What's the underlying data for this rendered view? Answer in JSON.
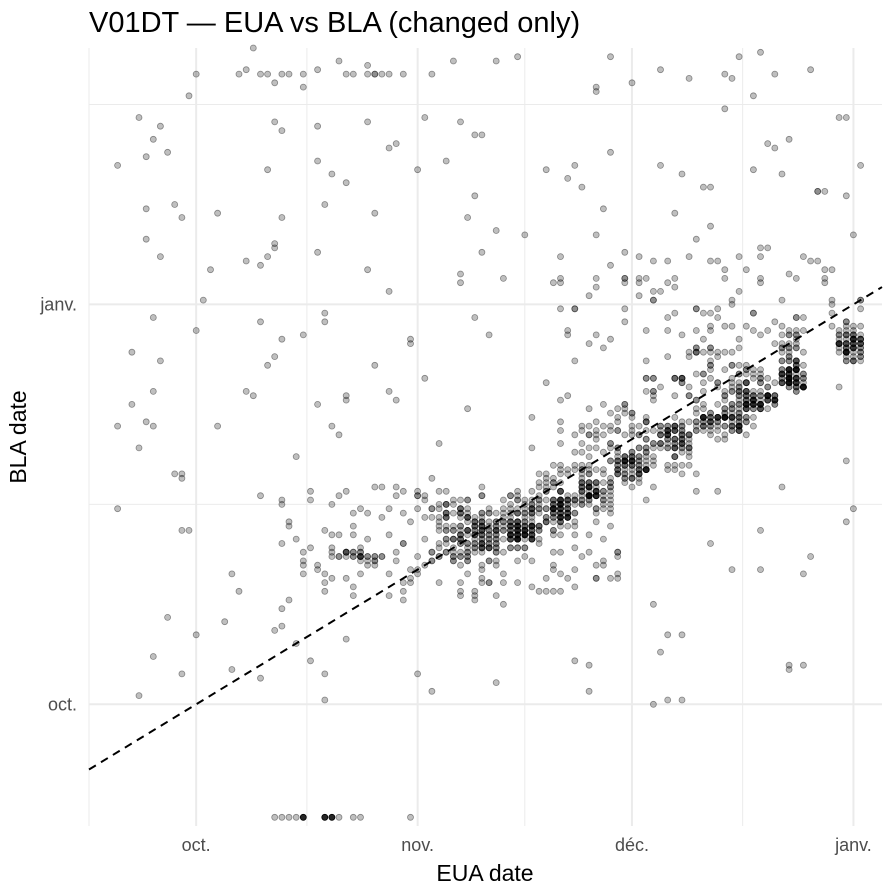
{
  "chart_data": {
    "type": "scatter",
    "title": "V01DT — EUA vs BLA (changed only)",
    "xlabel": "EUA date",
    "ylabel": "BLA date",
    "x_ticks": [
      {
        "label": "oct.",
        "value": "2020-10-01"
      },
      {
        "label": "nov.",
        "value": "2020-11-01"
      },
      {
        "label": "déc.",
        "value": "2020-12-01"
      },
      {
        "label": "janv.",
        "value": "2021-01-01"
      }
    ],
    "y_ticks": [
      {
        "label": "oct.",
        "value": "2020-10-01"
      },
      {
        "label": "janv.",
        "value": "2021-01-01"
      }
    ],
    "xlim": [
      "2020-09-16",
      "2021-01-05"
    ],
    "ylim": [
      "2020-09-03",
      "2021-03-01"
    ],
    "grid": true,
    "reference_line": "y = x",
    "colors": {
      "point": "#000000",
      "point_alpha": 0.25,
      "grid": "#ebebeb",
      "line": "#000000"
    },
    "clusters": [
      {
        "x": [
          "2020-11-04",
          "2020-11-12"
        ],
        "y": [
          "2020-11-02",
          "2020-11-15"
        ],
        "n": 70
      },
      {
        "x": [
          "2020-11-08",
          "2020-11-13"
        ],
        "y": [
          "2020-11-05",
          "2020-11-12"
        ],
        "n": 60
      },
      {
        "x": [
          "2020-11-13",
          "2020-11-18"
        ],
        "y": [
          "2020-11-06",
          "2020-11-18"
        ],
        "n": 70
      },
      {
        "x": [
          "2020-11-14",
          "2020-11-17"
        ],
        "y": [
          "2020-11-08",
          "2020-11-12"
        ],
        "n": 60
      },
      {
        "x": [
          "2020-11-18",
          "2020-11-23"
        ],
        "y": [
          "2020-11-10",
          "2020-11-26"
        ],
        "n": 60
      },
      {
        "x": [
          "2020-11-20",
          "2020-11-22"
        ],
        "y": [
          "2020-11-13",
          "2020-11-17"
        ],
        "n": 50
      },
      {
        "x": [
          "2020-11-23",
          "2020-11-28"
        ],
        "y": [
          "2020-11-14",
          "2020-12-06"
        ],
        "n": 60
      },
      {
        "x": [
          "2020-11-24",
          "2020-11-27"
        ],
        "y": [
          "2020-11-17",
          "2020-11-21"
        ],
        "n": 45
      },
      {
        "x": [
          "2020-11-28",
          "2020-12-03"
        ],
        "y": [
          "2020-11-20",
          "2020-12-10"
        ],
        "n": 60
      },
      {
        "x": [
          "2020-11-29",
          "2020-12-03"
        ],
        "y": [
          "2020-11-23",
          "2020-11-27"
        ],
        "n": 50
      },
      {
        "x": [
          "2020-12-03",
          "2020-12-09"
        ],
        "y": [
          "2020-11-24",
          "2020-12-16"
        ],
        "n": 60
      },
      {
        "x": [
          "2020-12-05",
          "2020-12-09"
        ],
        "y": [
          "2020-11-29",
          "2020-12-04"
        ],
        "n": 55
      },
      {
        "x": [
          "2020-12-09",
          "2020-12-18"
        ],
        "y": [
          "2020-12-01",
          "2020-12-22"
        ],
        "n": 80
      },
      {
        "x": [
          "2020-12-10",
          "2020-12-17"
        ],
        "y": [
          "2020-12-03",
          "2020-12-07"
        ],
        "n": 70
      },
      {
        "x": [
          "2020-12-15",
          "2020-12-21"
        ],
        "y": [
          "2020-12-08",
          "2020-12-18"
        ],
        "n": 60
      },
      {
        "x": [
          "2020-12-17",
          "2020-12-21"
        ],
        "y": [
          "2020-12-08",
          "2020-12-12"
        ],
        "n": 50
      },
      {
        "x": [
          "2020-12-22",
          "2020-12-25"
        ],
        "y": [
          "2020-12-12",
          "2020-12-26"
        ],
        "n": 60
      },
      {
        "x": [
          "2020-12-22",
          "2020-12-25"
        ],
        "y": [
          "2020-12-13",
          "2020-12-18"
        ],
        "n": 55
      },
      {
        "x": [
          "2020-12-30",
          "2021-01-02"
        ],
        "y": [
          "2020-12-19",
          "2020-12-27"
        ],
        "n": 45
      },
      {
        "x": [
          "2020-12-30",
          "2021-01-02"
        ],
        "y": [
          "2020-12-21",
          "2020-12-25"
        ],
        "n": 30
      },
      {
        "x": [
          "2020-10-13",
          "2020-11-30"
        ],
        "y": [
          "2020-10-25",
          "2020-11-20"
        ],
        "n": 150
      },
      {
        "x": [
          "2020-10-20",
          "2020-10-28"
        ],
        "y": [
          "2020-11-03",
          "2020-11-05"
        ],
        "n": 25
      },
      {
        "x": [
          "2020-11-01",
          "2020-11-10"
        ],
        "y": [
          "2020-11-03",
          "2020-11-20"
        ],
        "n": 45
      },
      {
        "x": [
          "2020-09-20",
          "2021-01-02"
        ],
        "y": [
          "2020-10-01",
          "2021-03-01"
        ],
        "n": 260
      },
      {
        "x": [
          "2020-11-20",
          "2021-01-02"
        ],
        "y": [
          "2020-12-22",
          "2021-01-12"
        ],
        "n": 90
      }
    ],
    "rows": [
      {
        "y": "2020-09-05",
        "x": [
          "2020-10-12",
          "2020-10-13",
          "2020-10-14",
          "2020-10-15",
          "2020-10-16",
          "2020-10-19",
          "2020-10-20",
          "2020-10-21",
          "2020-10-23",
          "2020-10-24",
          "2020-10-31"
        ],
        "strong": [
          "2020-10-16",
          "2020-10-19",
          "2020-10-20"
        ]
      },
      {
        "y": "2021-02-23",
        "x": [
          "2020-10-01",
          "2020-10-07",
          "2020-10-10",
          "2020-10-11",
          "2020-10-13",
          "2020-10-14",
          "2020-10-16",
          "2020-10-22",
          "2020-10-23",
          "2020-10-25",
          "2020-10-26",
          "2020-10-27",
          "2020-10-28",
          "2020-10-30",
          "2020-11-03"
        ],
        "strong": []
      }
    ]
  }
}
